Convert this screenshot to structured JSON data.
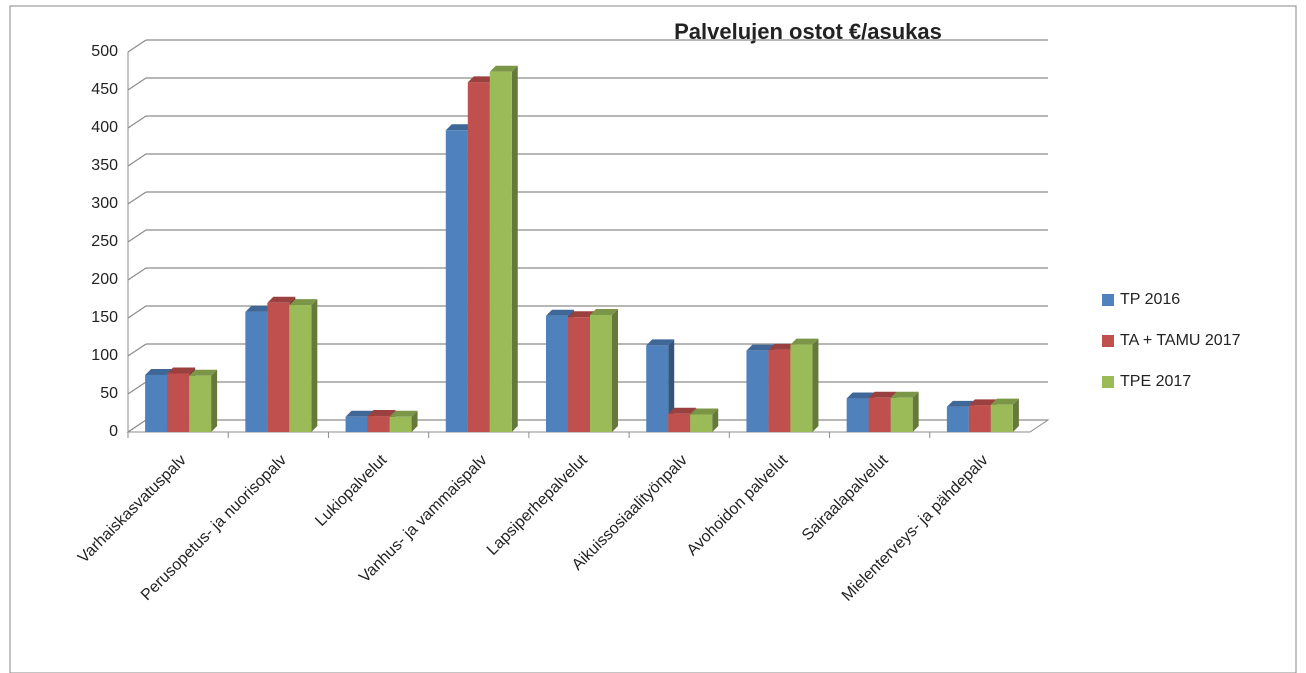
{
  "chart_data": {
    "type": "bar",
    "title": "Palvelujen ostot €/asukas",
    "categories": [
      "Varhaiskasvatuspalv",
      "Perusopetus- ja nuorisopalv",
      "Lukiopalvelut",
      "Vanhus- ja vammaispalv",
      "Lapsiperhepalvelut",
      "Aikuissosiaalityönpalv",
      "Avohoidon palvelut",
      "Sairaalapalvelut",
      "Mielenterveys- ja pähdepalv"
    ],
    "series": [
      {
        "name": "TP 2016",
        "color": "#4f81bd",
        "values": [
          75,
          158,
          20,
          397,
          153,
          114,
          107,
          44,
          33
        ]
      },
      {
        "name": "TA + TAMU 2017",
        "color": "#c0504d",
        "values": [
          77,
          170,
          21,
          460,
          151,
          24,
          108,
          45,
          35
        ]
      },
      {
        "name": "TPE 2017",
        "color": "#9bbb59",
        "values": [
          74,
          167,
          20,
          474,
          154,
          23,
          115,
          45,
          36
        ]
      }
    ],
    "ylim": [
      0,
      500
    ],
    "yticks": [
      0,
      50,
      100,
      150,
      200,
      250,
      300,
      350,
      400,
      450,
      500
    ],
    "grid": true,
    "legend": "right"
  }
}
